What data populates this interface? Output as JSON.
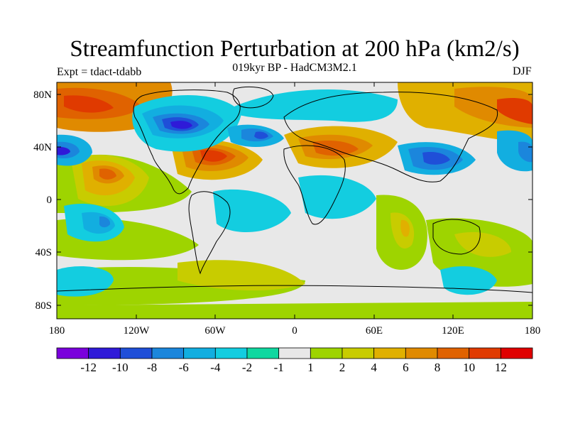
{
  "title": "Streamfunction Perturbation at 200 hPa (km2/s)",
  "subtitle": "019kyr BP - HadCM3M2.1",
  "left_label": "Expt = tdact-tdabb",
  "right_label": "DJF",
  "map": {
    "lat_ticks": [
      "80N",
      "40N",
      "0",
      "40S",
      "80S"
    ],
    "lon_ticks": [
      "180",
      "120W",
      "60W",
      "0",
      "60E",
      "120E",
      "180"
    ]
  },
  "colorbar": {
    "labels": [
      "-12",
      "-10",
      "-8",
      "-6",
      "-4",
      "-2",
      "-1",
      "1",
      "2",
      "4",
      "6",
      "8",
      "10",
      "12"
    ],
    "colors": [
      "#7a00dc",
      "#2f1ad8",
      "#1f4fd8",
      "#1b86dc",
      "#12aee0",
      "#13cde0",
      "#10d8a0",
      "#e8e8e8",
      "#9ed400",
      "#c8cc00",
      "#e0b000",
      "#e08a00",
      "#e06200",
      "#e03a00",
      "#e00000"
    ]
  }
}
